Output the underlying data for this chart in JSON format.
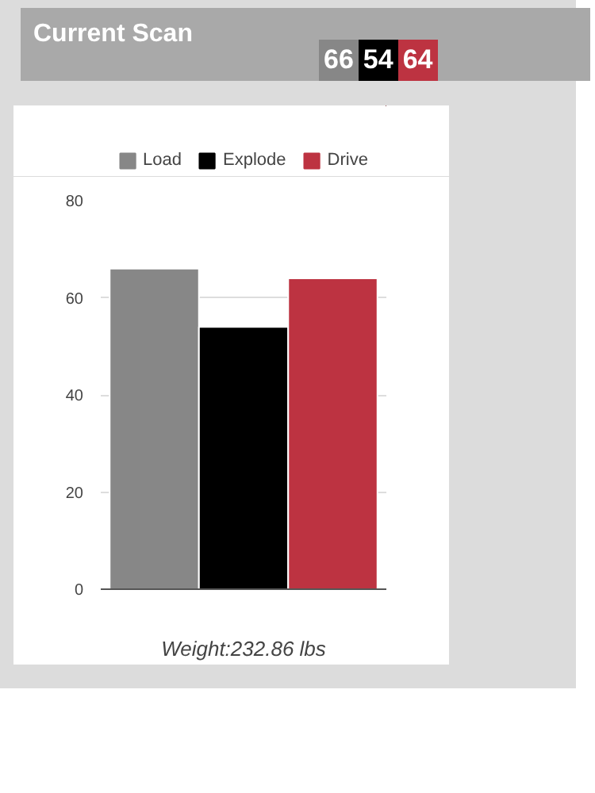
{
  "chart_data": {
    "type": "bar",
    "title": "Current Scan",
    "annotations": [
      "66",
      "54",
      "64"
    ],
    "categories": [
      null
    ],
    "series": [
      {
        "name": "Load",
        "color": "#878787",
        "values": [
          66
        ]
      },
      {
        "name": "Explode",
        "color": "#000000",
        "values": [
          54
        ]
      },
      {
        "name": "Drive",
        "color": "#bd3341",
        "values": [
          64
        ]
      }
    ],
    "ylim": [
      0,
      80
    ],
    "yticks": [
      0,
      20,
      40,
      60,
      80
    ],
    "grid": "y",
    "legend": "top",
    "xlabel": "Weight:232.86 lbs"
  }
}
